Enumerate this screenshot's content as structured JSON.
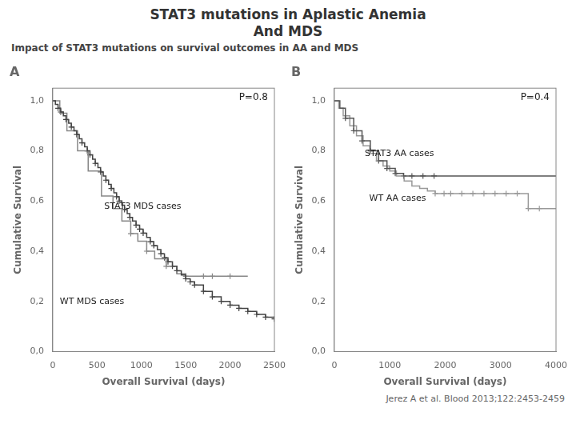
{
  "title": [
    "STAT3 mutations in Aplastic Anemia",
    "And MDS"
  ],
  "subtitle": "Impact of STAT3 mutations on survival outcomes in AA and MDS",
  "source": "Jerez A et al. Blood 2013;122:2453-2459",
  "chart_data": [
    {
      "type": "line",
      "title": "A",
      "xlabel": "Overall Survival (days)",
      "ylabel": "Cumulative Survival",
      "annotations": [
        "P=0.8"
      ],
      "xlim": [
        0,
        2500
      ],
      "ylim": [
        0.0,
        1.05
      ],
      "xticks": [
        0,
        500,
        1000,
        1500,
        2000,
        2500
      ],
      "yticks": [
        {
          "value": 0.0,
          "label": "0,0"
        },
        {
          "value": 0.2,
          "label": "0,2"
        },
        {
          "value": 0.4,
          "label": "0,4"
        },
        {
          "value": 0.6,
          "label": "0,6"
        },
        {
          "value": 0.8,
          "label": "0,8"
        },
        {
          "value": 1.0,
          "label": "1,0"
        }
      ],
      "grid": false,
      "series": [
        {
          "name": "WT MDS cases",
          "type": "line",
          "line_style": "steps-post",
          "color": "#444444",
          "x": [
            0,
            30,
            60,
            90,
            120,
            150,
            180,
            210,
            240,
            270,
            300,
            330,
            360,
            390,
            420,
            450,
            480,
            510,
            540,
            570,
            600,
            630,
            660,
            690,
            720,
            750,
            780,
            810,
            840,
            870,
            900,
            940,
            980,
            1020,
            1060,
            1100,
            1140,
            1180,
            1220,
            1260,
            1300,
            1350,
            1400,
            1450,
            1500,
            1550,
            1600,
            1700,
            1800,
            1900,
            2000,
            2100,
            2200,
            2300,
            2400,
            2500
          ],
          "values": [
            1.0,
            0.985,
            0.97,
            0.955,
            0.94,
            0.925,
            0.91,
            0.895,
            0.88,
            0.865,
            0.848,
            0.832,
            0.816,
            0.8,
            0.784,
            0.767,
            0.75,
            0.733,
            0.716,
            0.7,
            0.683,
            0.666,
            0.65,
            0.633,
            0.617,
            0.6,
            0.583,
            0.566,
            0.55,
            0.535,
            0.52,
            0.504,
            0.488,
            0.472,
            0.455,
            0.438,
            0.422,
            0.406,
            0.39,
            0.374,
            0.358,
            0.34,
            0.322,
            0.305,
            0.29,
            0.278,
            0.265,
            0.24,
            0.218,
            0.2,
            0.185,
            0.172,
            0.16,
            0.148,
            0.137,
            0.13
          ]
        },
        {
          "name": "STAT3 MDS cases",
          "type": "line",
          "line_style": "steps-post",
          "color": "#888888",
          "x": [
            0,
            80,
            160,
            280,
            400,
            550,
            680,
            780,
            880,
            960,
            1060,
            1150,
            1280,
            1400,
            1500,
            1600,
            1700,
            1800,
            2000,
            2200
          ],
          "values": [
            1.0,
            0.95,
            0.88,
            0.8,
            0.72,
            0.62,
            0.57,
            0.52,
            0.47,
            0.44,
            0.4,
            0.37,
            0.34,
            0.31,
            0.3,
            0.3,
            0.3,
            0.3,
            0.3,
            0.3
          ]
        },
        {
          "type": "scatter",
          "marker": "+",
          "color": "#444444",
          "x": [
            60,
            90,
            150,
            210,
            270,
            330,
            390,
            420,
            480,
            540,
            600,
            660,
            720,
            750,
            810,
            870,
            940,
            980,
            1020,
            1100,
            1140,
            1220,
            1260,
            1300,
            1350,
            1400,
            1500,
            1550,
            1600,
            1700,
            1800,
            1900,
            2000,
            2100,
            2200,
            2300,
            2400,
            2500
          ],
          "values": [
            0.97,
            0.955,
            0.925,
            0.895,
            0.865,
            0.832,
            0.8,
            0.784,
            0.75,
            0.716,
            0.683,
            0.65,
            0.617,
            0.6,
            0.566,
            0.535,
            0.504,
            0.488,
            0.472,
            0.438,
            0.422,
            0.39,
            0.374,
            0.358,
            0.34,
            0.322,
            0.29,
            0.278,
            0.265,
            0.24,
            0.218,
            0.2,
            0.185,
            0.172,
            0.16,
            0.148,
            0.137,
            0.13
          ]
        },
        {
          "type": "scatter",
          "marker": "+",
          "color": "#888888",
          "x": [
            880,
            1060,
            1280,
            1500,
            1700,
            1800,
            2000
          ],
          "values": [
            0.47,
            0.4,
            0.34,
            0.3,
            0.3,
            0.3,
            0.3
          ]
        }
      ]
    },
    {
      "type": "line",
      "title": "B",
      "xlabel": "Overall Survival (days)",
      "ylabel": "Cumulative Survival",
      "annotations": [
        "P=0.4"
      ],
      "xlim": [
        0,
        4000
      ],
      "ylim": [
        0.0,
        1.05
      ],
      "xticks": [
        0,
        1000,
        2000,
        3000,
        4000
      ],
      "yticks": [
        {
          "value": 0.0,
          "label": "0,0"
        },
        {
          "value": 0.2,
          "label": "0,2"
        },
        {
          "value": 0.4,
          "label": "0,4"
        },
        {
          "value": 0.6,
          "label": "0,6"
        },
        {
          "value": 0.8,
          "label": "0,8"
        },
        {
          "value": 1.0,
          "label": "1,0"
        }
      ],
      "grid": false,
      "series": [
        {
          "name": "STAT3 AA cases",
          "type": "line",
          "line_style": "steps-post",
          "color": "#555555",
          "x": [
            0,
            100,
            200,
            350,
            500,
            650,
            800,
            950,
            1100,
            1250,
            1400,
            1600,
            1800,
            2000,
            2200,
            2400,
            2600,
            2800,
            3000,
            3200,
            3400,
            3600,
            3800,
            4000
          ],
          "values": [
            1.0,
            0.97,
            0.93,
            0.88,
            0.84,
            0.8,
            0.76,
            0.73,
            0.71,
            0.7,
            0.7,
            0.7,
            0.7,
            0.7,
            0.7,
            0.7,
            0.7,
            0.7,
            0.7,
            0.7,
            0.7,
            0.7,
            0.7,
            0.7
          ]
        },
        {
          "name": "WT AA cases",
          "type": "line",
          "line_style": "steps-post",
          "color": "#999999",
          "x": [
            0,
            80,
            160,
            280,
            400,
            520,
            640,
            760,
            880,
            1000,
            1120,
            1260,
            1400,
            1540,
            1680,
            1820,
            1980,
            2100,
            2300,
            2500,
            2700,
            2900,
            3100,
            3300,
            3500,
            3700,
            4000
          ],
          "values": [
            1.0,
            0.97,
            0.94,
            0.9,
            0.86,
            0.82,
            0.79,
            0.76,
            0.74,
            0.72,
            0.7,
            0.68,
            0.66,
            0.65,
            0.64,
            0.63,
            0.63,
            0.63,
            0.63,
            0.63,
            0.63,
            0.63,
            0.63,
            0.63,
            0.57,
            0.57,
            0.57
          ]
        },
        {
          "type": "scatter",
          "marker": "+",
          "color": "#555555",
          "x": [
            200,
            350,
            500,
            650,
            800,
            950,
            1100,
            1250,
            1400,
            1600,
            1800
          ],
          "values": [
            0.93,
            0.88,
            0.84,
            0.8,
            0.76,
            0.73,
            0.71,
            0.7,
            0.7,
            0.7,
            0.7
          ]
        },
        {
          "type": "scatter",
          "marker": "+",
          "color": "#999999",
          "x": [
            1820,
            1980,
            2100,
            2300,
            2500,
            2700,
            2900,
            3100,
            3300,
            3500,
            3700
          ],
          "values": [
            0.63,
            0.63,
            0.63,
            0.63,
            0.63,
            0.63,
            0.63,
            0.63,
            0.63,
            0.57,
            0.57
          ]
        }
      ]
    }
  ]
}
